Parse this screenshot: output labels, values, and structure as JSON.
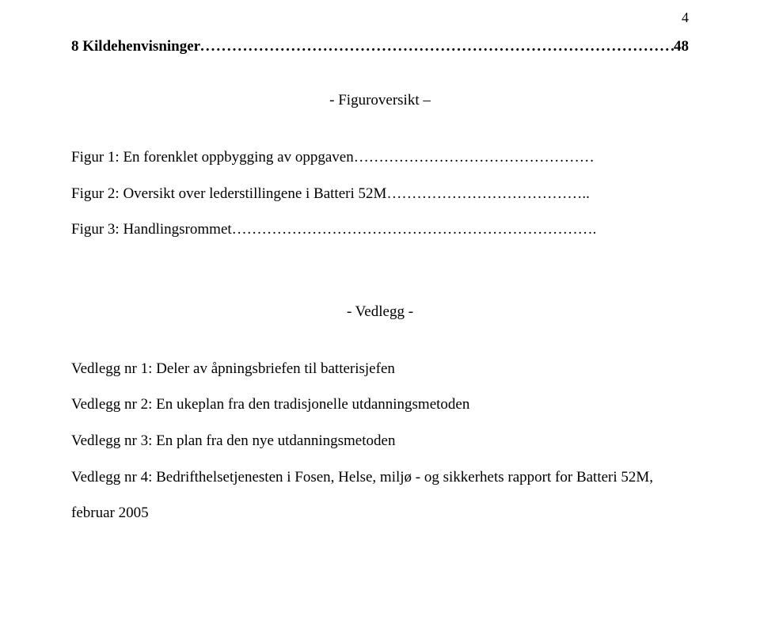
{
  "page_number": "4",
  "toc": {
    "label": "8 Kildehenvisninger",
    "dots": "..............................................................................................................................",
    "page": "48"
  },
  "figur_heading": "- Figuroversikt –",
  "figures": [
    "Figur 1: En forenklet oppbygging av oppgaven…………………………………………",
    "Figur 2: Oversikt over lederstillingene i Batteri 52M…………………………………..",
    "Figur 3: Handlingsrommet………………………………………………………………."
  ],
  "vedlegg_heading": "-    Vedlegg  -",
  "vedlegg": [
    "Vedlegg nr 1: Deler av åpningsbriefen til batterisjefen",
    "Vedlegg nr 2: En ukeplan fra den tradisjonelle utdanningsmetoden",
    "Vedlegg nr 3: En plan fra den nye utdanningsmetoden",
    "Vedlegg nr 4: Bedrifthelsetjenesten i Fosen, Helse, miljø - og sikkerhets rapport for Batteri 52M,",
    "februar 2005"
  ]
}
